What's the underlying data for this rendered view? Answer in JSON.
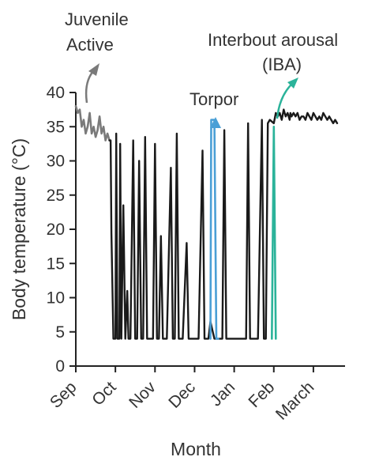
{
  "chart_data": {
    "type": "line",
    "xlabel": "Month",
    "ylabel": "Body temperature (°C)",
    "ylim": [
      0,
      40
    ],
    "yticks": [
      0,
      5,
      10,
      15,
      20,
      25,
      30,
      35,
      40
    ],
    "xlim": [
      0,
      6.6
    ],
    "categories": [
      "Sep",
      "Oct",
      "Nov",
      "Dec",
      "Jan",
      "Feb",
      "March"
    ],
    "annotations": {
      "juvenile": {
        "line1": "Juvenile",
        "line2": "Active"
      },
      "torpor": "Torpor",
      "iba": {
        "line1": "Interbout arousal",
        "line2": "(IBA)"
      }
    },
    "colors": {
      "juvenile": "#7a7a7a",
      "main": "#1a1a1a",
      "torpor": "#4a9fd6",
      "iba": "#2bb39a"
    },
    "series": [
      {
        "role": "juvenile",
        "x": [
          0,
          0.05,
          0.1,
          0.15,
          0.2,
          0.25,
          0.3,
          0.35,
          0.4,
          0.45,
          0.5,
          0.55,
          0.6,
          0.65,
          0.7,
          0.75,
          0.8,
          0.85
        ],
        "y": [
          38,
          37,
          37.5,
          35,
          36,
          34,
          35,
          37,
          34,
          35,
          33.5,
          34.5,
          36.5,
          34,
          35,
          33,
          34,
          33
        ]
      },
      {
        "role": "main",
        "x": [
          0.85,
          0.88,
          0.9,
          0.95,
          1.0,
          1.02,
          1.05,
          1.1,
          1.12,
          1.15,
          1.2,
          1.25,
          1.3,
          1.33,
          1.38,
          1.45,
          1.5,
          1.55,
          1.6,
          1.65,
          1.7,
          1.75,
          1.8,
          1.85,
          1.95,
          2.0,
          2.05,
          2.1,
          2.15,
          2.2,
          2.3,
          2.4,
          2.45,
          2.5,
          2.55,
          2.6,
          2.65,
          2.7,
          2.8,
          2.85,
          2.9,
          2.95,
          3.0,
          3.05,
          3.1,
          3.2,
          3.25,
          3.3,
          3.35,
          3.4,
          3.5,
          3.55,
          3.6,
          3.65,
          3.7,
          3.75,
          3.8,
          3.85,
          3.9,
          4.0,
          4.05,
          4.1,
          4.2,
          4.25,
          4.3,
          4.35,
          4.4,
          4.5,
          4.55,
          4.6,
          4.7,
          4.75,
          4.8,
          4.85,
          4.9,
          5.0,
          5.05,
          5.1,
          5.15,
          5.2,
          5.25,
          5.3,
          5.35,
          5.4,
          5.42,
          5.45,
          5.5,
          5.55,
          5.6,
          5.65,
          5.7,
          5.75,
          5.8,
          5.85,
          5.9,
          5.95,
          6.0,
          6.05,
          6.1,
          6.15,
          6.2,
          6.25,
          6.3,
          6.35,
          6.4,
          6.45,
          6.5,
          6.55,
          6.6
        ],
        "y": [
          33,
          33,
          19.5,
          4,
          4,
          34,
          4,
          4,
          32.5,
          4,
          23.5,
          4,
          11,
          4,
          4,
          33,
          4,
          4,
          30,
          4,
          4,
          33.5,
          4,
          4,
          4,
          32.5,
          4,
          4,
          19,
          4,
          4,
          29,
          4,
          4,
          34,
          4,
          4,
          4,
          18,
          4,
          4,
          4,
          4,
          4,
          4,
          31.5,
          4,
          4,
          4,
          6.5,
          4,
          4,
          4,
          4,
          4,
          34.5,
          4,
          4,
          4,
          4,
          4,
          4,
          4,
          4,
          4,
          35.5,
          4,
          4,
          4,
          4,
          36,
          4,
          4,
          35.5,
          36,
          35.5,
          37,
          36.5,
          37,
          36,
          37.5,
          36.5,
          37,
          36,
          37,
          36.5,
          37,
          36.5,
          37,
          36,
          36.5,
          36.5,
          36,
          37,
          36.5,
          36,
          37,
          36.5,
          36,
          36.5,
          36,
          37,
          36.5,
          36,
          36.5,
          36,
          35.5,
          36,
          35.5
        ]
      },
      {
        "role": "torpor",
        "x": [
          3.4,
          3.42,
          3.5,
          3.55,
          3.6
        ],
        "y": [
          4,
          36,
          36,
          4,
          4
        ]
      },
      {
        "role": "iba",
        "x": [
          4.95,
          5.0,
          5.05
        ],
        "y": [
          4,
          35,
          4
        ]
      }
    ]
  }
}
